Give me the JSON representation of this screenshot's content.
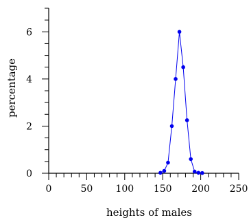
{
  "chart_data": {
    "type": "line",
    "title": "",
    "xlabel": "heights of males",
    "ylabel": "percentage",
    "xlim": [
      0,
      250
    ],
    "ylim": [
      0,
      7
    ],
    "xticks": [
      0,
      50,
      100,
      150,
      200,
      250
    ],
    "yticks": [
      0,
      2,
      4,
      6
    ],
    "xminor_step": 10,
    "yminor_step": 0.5,
    "grid": false,
    "series": [
      {
        "color": "#0000ee",
        "x": [
          147,
          152,
          157,
          162,
          167,
          172,
          177,
          182,
          187,
          192,
          197,
          202
        ],
        "y": [
          0.02,
          0.1,
          0.45,
          2.0,
          4.0,
          6.0,
          4.5,
          2.25,
          0.6,
          0.07,
          0.02,
          0.01
        ]
      }
    ]
  }
}
